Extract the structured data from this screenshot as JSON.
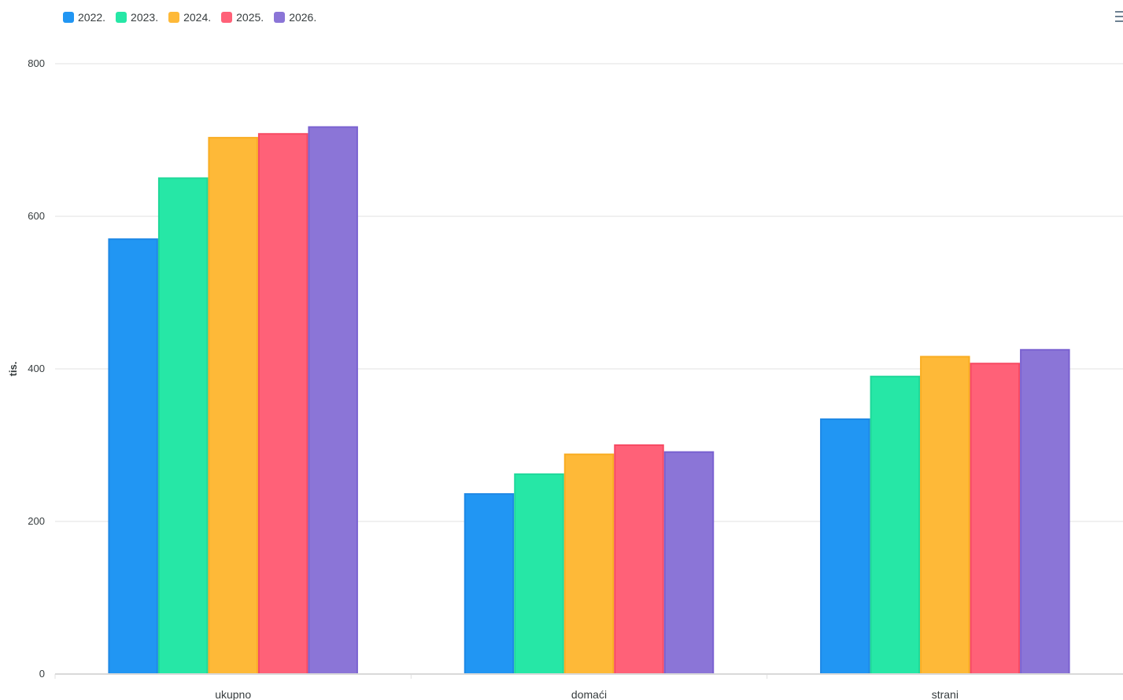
{
  "chart_data": {
    "type": "bar",
    "categories": [
      "ukupno",
      "domaći",
      "strani"
    ],
    "series": [
      {
        "name": "2022.",
        "color": "#2196f3",
        "border": "#1e88e5",
        "values": [
          570,
          236,
          334
        ]
      },
      {
        "name": "2023.",
        "color": "#26e7a6",
        "border": "#1fd89a",
        "values": [
          650,
          262,
          390
        ]
      },
      {
        "name": "2024.",
        "color": "#feb938",
        "border": "#f9ad22",
        "values": [
          703,
          288,
          416
        ]
      },
      {
        "name": "2025.",
        "color": "#ff6178",
        "border": "#f74a63",
        "values": [
          708,
          300,
          407
        ]
      },
      {
        "name": "2026.",
        "color": "#8b75d7",
        "border": "#7a62d1",
        "values": [
          717,
          291,
          425
        ]
      }
    ],
    "ylabel": "tis.",
    "ylim": [
      0,
      800
    ],
    "yticks": [
      0,
      200,
      400,
      600,
      800
    ],
    "grid": true,
    "legend": "top-left"
  },
  "toolbar": {
    "menu_icon": "hamburger-menu-icon"
  }
}
